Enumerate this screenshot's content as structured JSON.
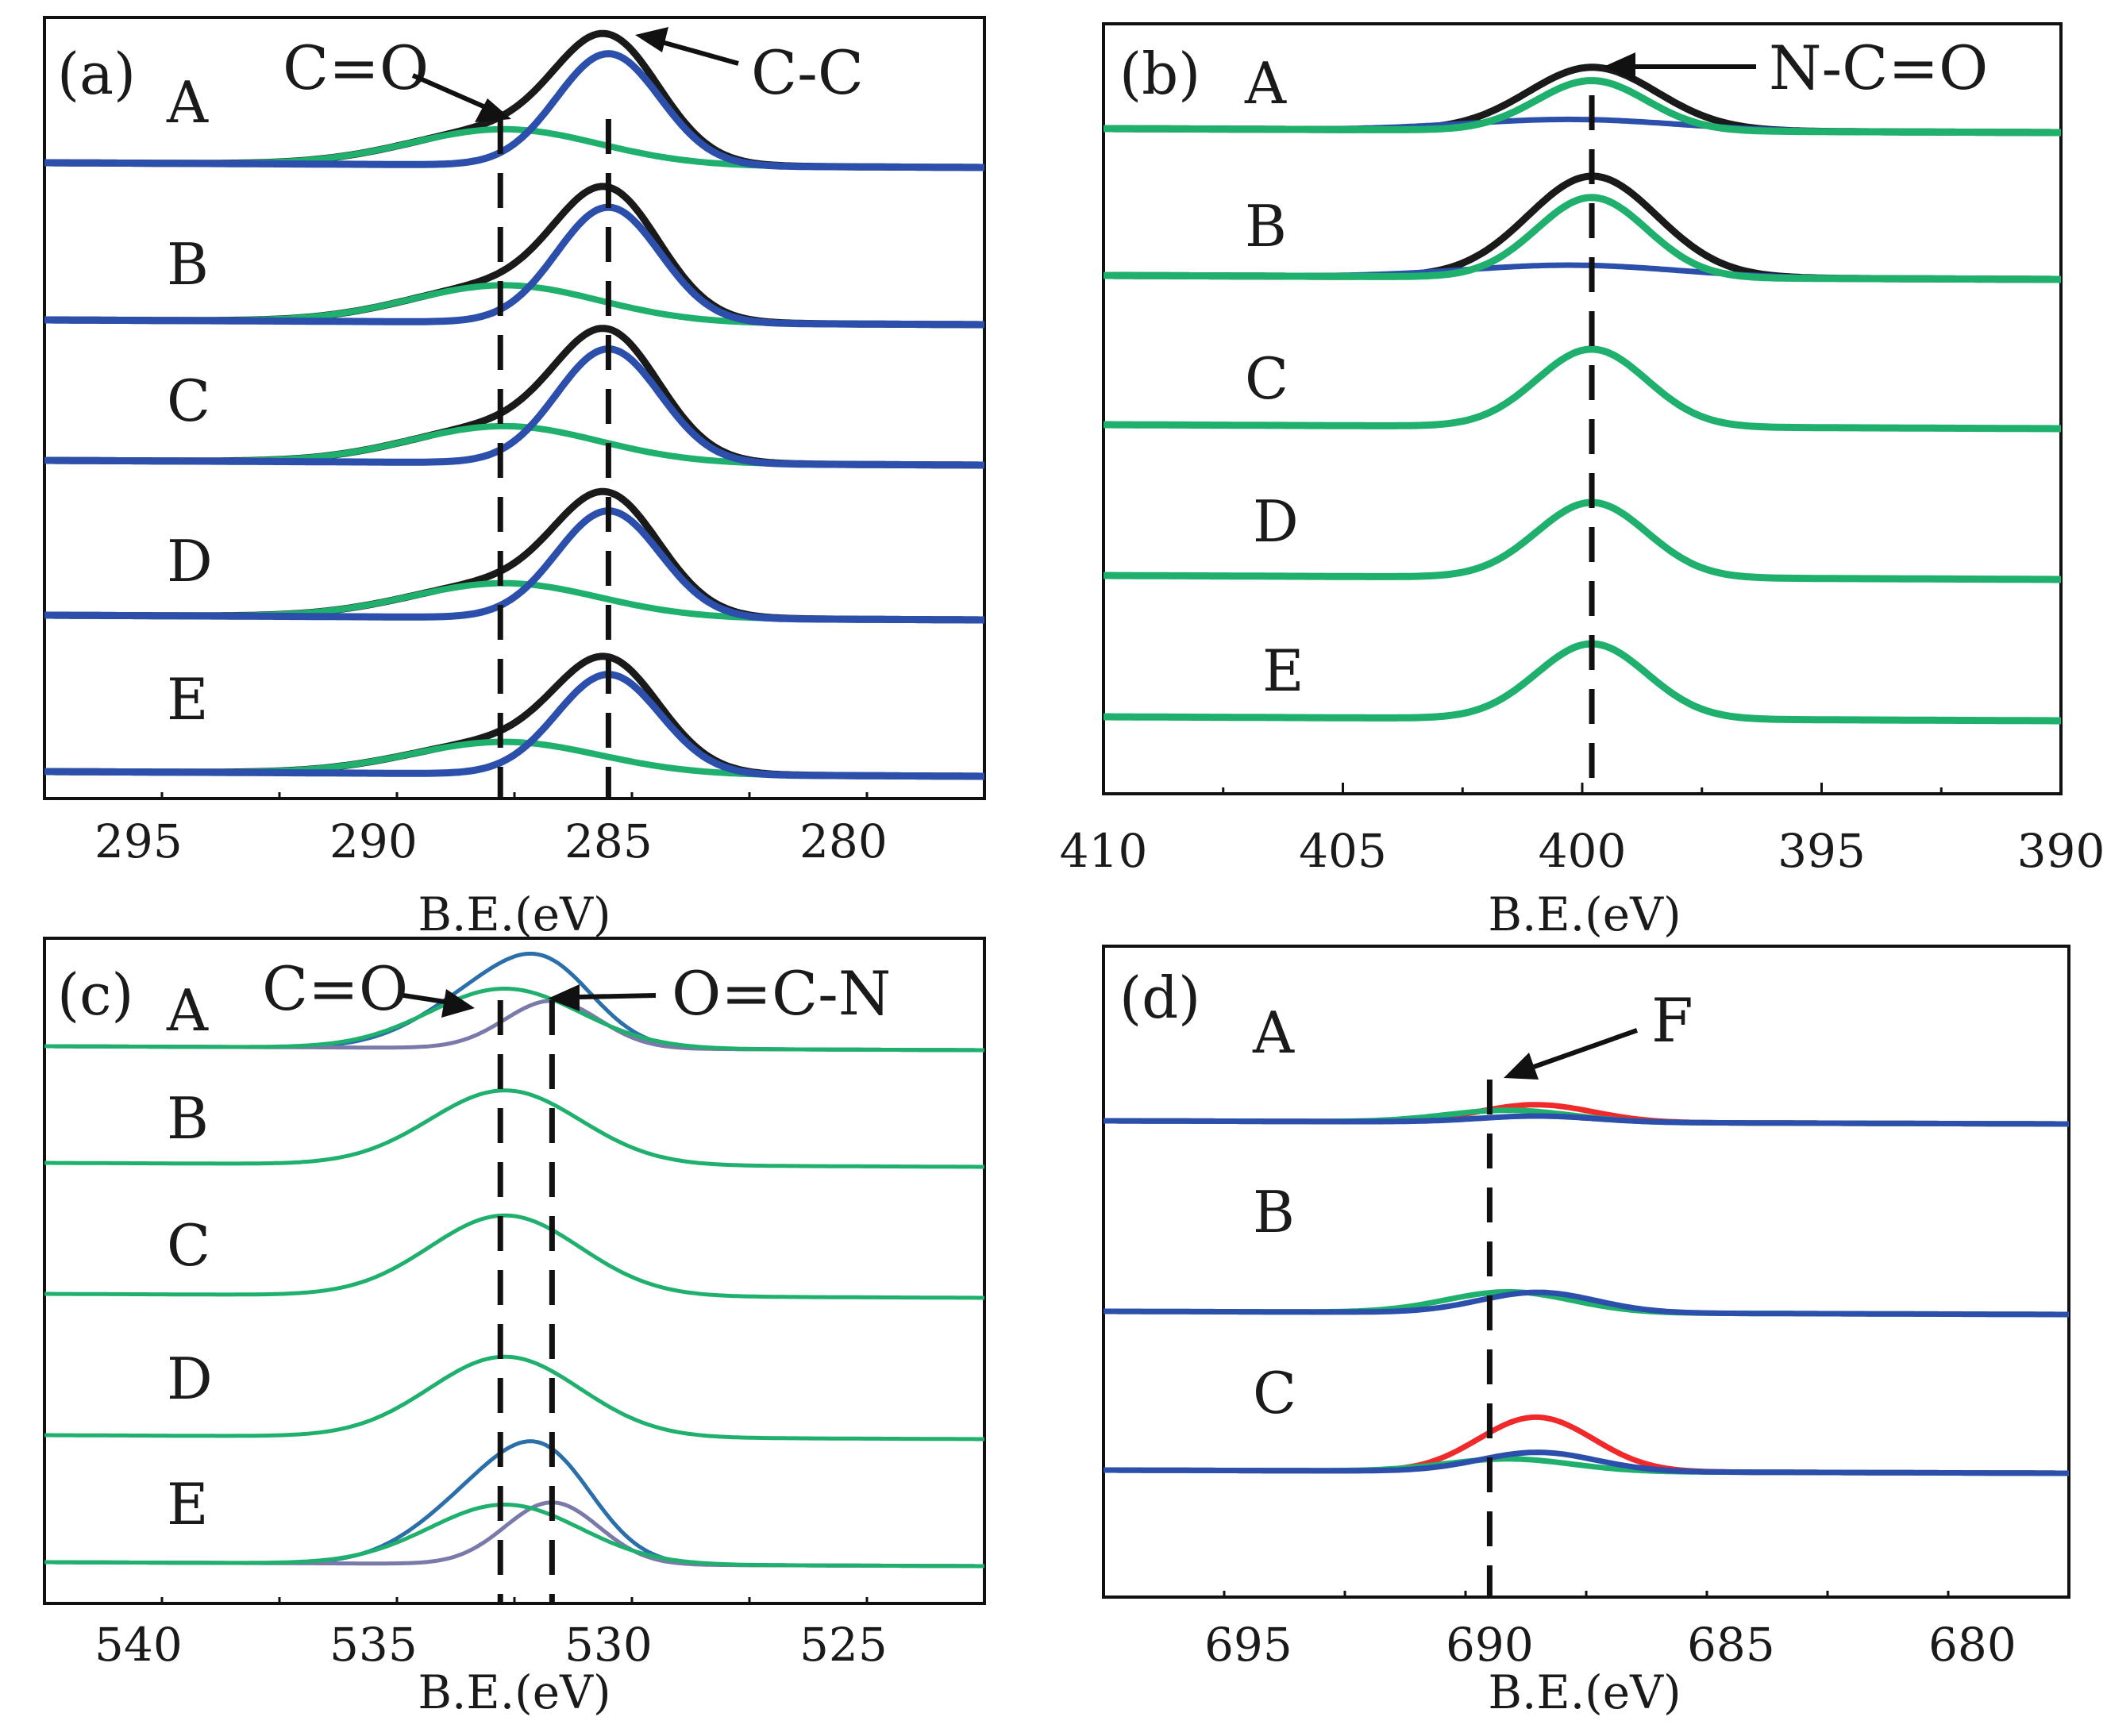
{
  "chart_data": [
    {
      "type": "line",
      "panel_label": "(a)",
      "xlabel": "B.E.(eV)",
      "xlim": [
        297,
        277
      ],
      "xticks": [
        295,
        290,
        285,
        280
      ],
      "traces": [
        "A",
        "B",
        "C",
        "D",
        "E"
      ],
      "trace_tilt": 0.06,
      "components": [
        {
          "name": "envelope",
          "color": "#1a1a1a",
          "width": 9,
          "peaks": [
            [
              285.0,
              1.1,
              1.0
            ],
            [
              287.2,
              2.0,
              0.32
            ]
          ],
          "per_trace_scale": [
            0.94,
            0.97,
            0.96,
            0.9,
            0.84
          ]
        },
        {
          "name": "C=O component",
          "color": "#1fb06e",
          "width": 8,
          "peaks": [
            [
              287.2,
              2.0,
              0.32
            ]
          ],
          "per_trace_scale": [
            0.94,
            0.97,
            0.96,
            0.9,
            0.84
          ]
        },
        {
          "name": "C-C component",
          "color": "#2b4faa",
          "width": 9,
          "peaks": [
            [
              285.0,
              1.1,
              1.0
            ]
          ],
          "per_trace_scale": [
            0.94,
            0.97,
            0.96,
            0.9,
            0.84
          ]
        }
      ],
      "refs": [
        287.3,
        285.0
      ],
      "annotations": [
        {
          "text": "C=O",
          "target": 287.3,
          "trace": 0
        },
        {
          "text": "C-C",
          "target": 285.0,
          "trace": 0
        }
      ]
    },
    {
      "type": "line",
      "panel_label": "(b)",
      "xlabel": "B.E.(eV)",
      "xlim": [
        410,
        390
      ],
      "xticks": [
        410,
        405,
        400,
        395,
        390
      ],
      "traces": [
        "A",
        "B",
        "C",
        "D",
        "E"
      ],
      "trace_tilt": 0.05,
      "components": [
        {
          "name": "envelope",
          "color": "#1a1a1a",
          "width": 9,
          "peaks": [
            [
              399.8,
              1.3,
              0.45
            ],
            [
              399.7,
              1.6,
              0.12
            ]
          ],
          "per_trace_scale": [
            1.0,
            1.6,
            0,
            0,
            0
          ]
        },
        {
          "name": "secondary component",
          "color": "#2b4faa",
          "width": 7,
          "peaks": [
            [
              400.2,
              2.2,
              0.1
            ]
          ],
          "per_trace_scale": [
            1.0,
            1.1,
            0,
            0,
            0
          ]
        },
        {
          "name": "N-C=O component",
          "color": "#1fb06e",
          "width": 9,
          "peaks": [
            [
              399.8,
              1.15,
              0.45
            ]
          ],
          "per_trace_scale": [
            1.0,
            1.6,
            1.55,
            1.5,
            1.5
          ]
        }
      ],
      "refs": [
        399.8
      ],
      "annotations": [
        {
          "text": "N-C=O",
          "target": 399.8,
          "trace": 0
        }
      ]
    },
    {
      "type": "line",
      "panel_label": "(c)",
      "xlabel": "B.E.(eV)",
      "xlim": [
        542,
        522
      ],
      "xticks": [
        540,
        535,
        530,
        525
      ],
      "traces": [
        "A",
        "B",
        "C",
        "D",
        "E"
      ],
      "trace_tilt": 0.05,
      "components": [
        {
          "name": "envelope",
          "color": "#2a6faa",
          "width": 5,
          "peaks": [
            [
              532.4,
              1.4,
              0.5
            ],
            [
              531.2,
              1.0,
              0.4
            ]
          ],
          "per_trace_scale": [
            1.0,
            0,
            0,
            0,
            1.3
          ]
        },
        {
          "name": "O=C-N component",
          "color": "#7a7aaa",
          "width": 5,
          "peaks": [
            [
              531.2,
              1.0,
              0.4
            ]
          ],
          "per_trace_scale": [
            1.0,
            0,
            0,
            0,
            1.3
          ]
        },
        {
          "name": "C=O component",
          "color": "#1fb06e",
          "width": 5,
          "peaks": [
            [
              532.2,
              1.6,
              0.5
            ]
          ],
          "per_trace_scale": [
            1.0,
            1.25,
            1.35,
            1.35,
            1.0
          ]
        }
      ],
      "refs": [
        532.3,
        531.2
      ],
      "annotations": [
        {
          "text": "C=O",
          "target": 532.3,
          "trace": 0
        },
        {
          "text": "O=C-N",
          "target": 531.2,
          "trace": 0
        }
      ]
    },
    {
      "type": "line",
      "panel_label": "(d)",
      "xlabel": "B.E.(eV)",
      "xlim": [
        698,
        678
      ],
      "xticks": [
        695,
        690,
        685,
        680
      ],
      "traces": [
        "A",
        "B",
        "C"
      ],
      "trace_tilt": 0.04,
      "components": [
        {
          "name": "red component",
          "color": "#f02a2a",
          "width": 7,
          "peaks": [
            [
              688.8,
              1.1,
              0.3
            ],
            [
              689.8,
              1.0,
              0.1
            ]
          ],
          "per_trace_scale": [
            1.0,
            0,
            3.1
          ]
        },
        {
          "name": "green component",
          "color": "#1fb06e",
          "width": 7,
          "peaks": [
            [
              689.6,
              1.3,
              0.25
            ]
          ],
          "per_trace_scale": [
            1.0,
            1.75,
            1.05
          ]
        },
        {
          "name": "blue component",
          "color": "#2b4faa",
          "width": 7,
          "peaks": [
            [
              689.0,
              1.2,
              0.13
            ]
          ],
          "per_trace_scale": [
            1.0,
            3.3,
            3.1
          ]
        }
      ],
      "refs": [
        690.0
      ],
      "annotations": [
        {
          "text": "F",
          "target": 690.0,
          "trace": 0
        }
      ]
    }
  ]
}
